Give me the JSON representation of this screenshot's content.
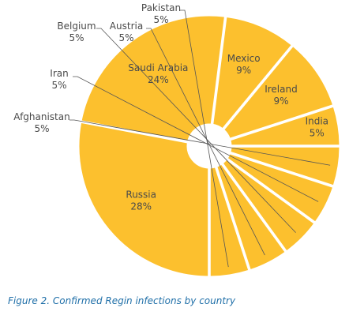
{
  "chart_data": {
    "type": "pie",
    "title": "",
    "categories": [
      "Russia",
      "Saudi Arabia",
      "Mexico",
      "Ireland",
      "India",
      "Afghanistan",
      "Iran",
      "Belgium",
      "Austria",
      "Pakistan"
    ],
    "values": [
      28,
      24,
      9,
      9,
      5,
      5,
      5,
      5,
      5,
      5
    ],
    "labels": [
      "28%",
      "24%",
      "9%",
      "9%",
      "5%",
      "5%",
      "5%",
      "5%",
      "5%",
      "5%"
    ],
    "exploded": true,
    "colors": {
      "slice": "#fcc02e",
      "slice_edge": "#ffffff",
      "label_text": "#4a4a4a",
      "leader_line": "#555555"
    }
  },
  "caption": "Figure 2. Confirmed Regin infections by country",
  "colors": {
    "caption": "#1f6fa8",
    "background": "#ffffff"
  }
}
